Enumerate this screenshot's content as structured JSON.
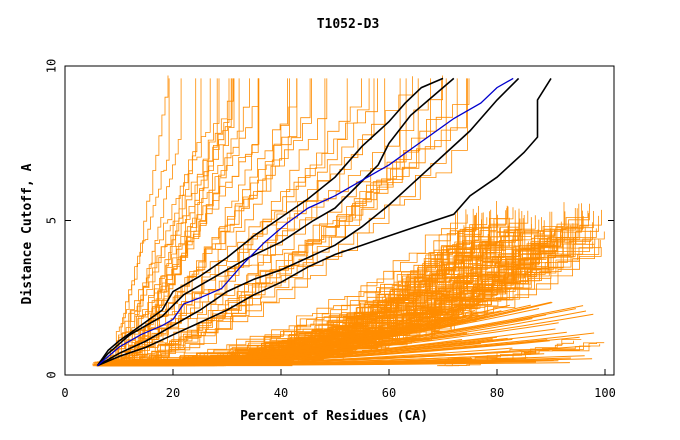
{
  "chart_data": {
    "type": "line",
    "title": "T1052-D3",
    "xlabel": "Percent of Residues (CA)",
    "ylabel": "Distance Cutoff, A",
    "xlim": [
      0,
      100
    ],
    "ylim": [
      0,
      10
    ],
    "xticks": [
      0,
      20,
      40,
      60,
      80,
      100
    ],
    "yticks": [
      0,
      5,
      10
    ],
    "colors": {
      "background_models": "#ff8c00",
      "highlight_black": "#000000",
      "highlight_blue": "#0000cd"
    },
    "background_bands": [
      {
        "name": "steep",
        "count": 45,
        "x_start_range": [
          6,
          12
        ],
        "x_end_range": [
          18,
          75
        ],
        "y_max": 9.6,
        "exponent_range": [
          0.9,
          1.6
        ]
      },
      {
        "name": "shallow",
        "count": 120,
        "x_start_range": [
          5,
          13
        ],
        "x_end_range": [
          72,
          100
        ],
        "y_max": 5.5,
        "exponent_range": [
          1.8,
          3.5
        ]
      },
      {
        "name": "flat",
        "count": 6,
        "x_start_range": [
          66,
          72
        ],
        "x_end_range": [
          92,
          100
        ],
        "y_max": 1.2,
        "exponent_range": [
          1.0,
          1.4
        ]
      }
    ],
    "series": [
      {
        "name": "black-1",
        "color": "#000000",
        "x": [
          6,
          8,
          10,
          14,
          18,
          20,
          22,
          25,
          30,
          35,
          40,
          45,
          50,
          55,
          60,
          63,
          66,
          70
        ],
        "y": [
          0.3,
          0.8,
          1.1,
          1.6,
          2.1,
          2.7,
          2.9,
          3.2,
          3.8,
          4.5,
          5.1,
          5.7,
          6.4,
          7.4,
          8.2,
          8.8,
          9.3,
          9.6
        ]
      },
      {
        "name": "black-2",
        "color": "#000000",
        "x": [
          6,
          8,
          12,
          18,
          22,
          28,
          34,
          40,
          46,
          50,
          54,
          58,
          60,
          64,
          68,
          72
        ],
        "y": [
          0.3,
          0.7,
          1.3,
          1.9,
          2.6,
          3.2,
          3.8,
          4.3,
          5.0,
          5.4,
          6.1,
          6.8,
          7.5,
          8.4,
          9.0,
          9.6
        ]
      },
      {
        "name": "black-3",
        "color": "#000000",
        "x": [
          6,
          10,
          15,
          20,
          25,
          30,
          35,
          40,
          45,
          50,
          55,
          60,
          65,
          70,
          75,
          80,
          84
        ],
        "y": [
          0.3,
          0.7,
          1.1,
          1.6,
          2.1,
          2.7,
          3.1,
          3.4,
          3.8,
          4.2,
          4.8,
          5.5,
          6.3,
          7.1,
          7.9,
          8.9,
          9.6
        ]
      },
      {
        "name": "black-4",
        "color": "#000000",
        "x": [
          6,
          10,
          15,
          20,
          25,
          30,
          35,
          40,
          45,
          50,
          55,
          60,
          65,
          72,
          75,
          80,
          85,
          87.5,
          87.5,
          90
        ],
        "y": [
          0.3,
          0.6,
          0.9,
          1.3,
          1.7,
          2.1,
          2.6,
          3.0,
          3.5,
          3.9,
          4.2,
          4.5,
          4.8,
          5.2,
          5.8,
          6.4,
          7.2,
          7.7,
          8.9,
          9.6
        ]
      },
      {
        "name": "blue",
        "color": "#0000cd",
        "x": [
          6,
          8,
          10,
          14,
          18,
          20,
          22,
          25,
          29,
          33,
          37,
          41,
          45,
          50,
          55,
          60,
          64,
          68,
          72,
          77,
          80,
          83
        ],
        "y": [
          0.3,
          0.6,
          0.9,
          1.3,
          1.6,
          1.8,
          2.3,
          2.5,
          2.8,
          3.6,
          4.3,
          4.9,
          5.4,
          5.8,
          6.3,
          6.8,
          7.3,
          7.8,
          8.3,
          8.8,
          9.3,
          9.6
        ]
      }
    ]
  }
}
